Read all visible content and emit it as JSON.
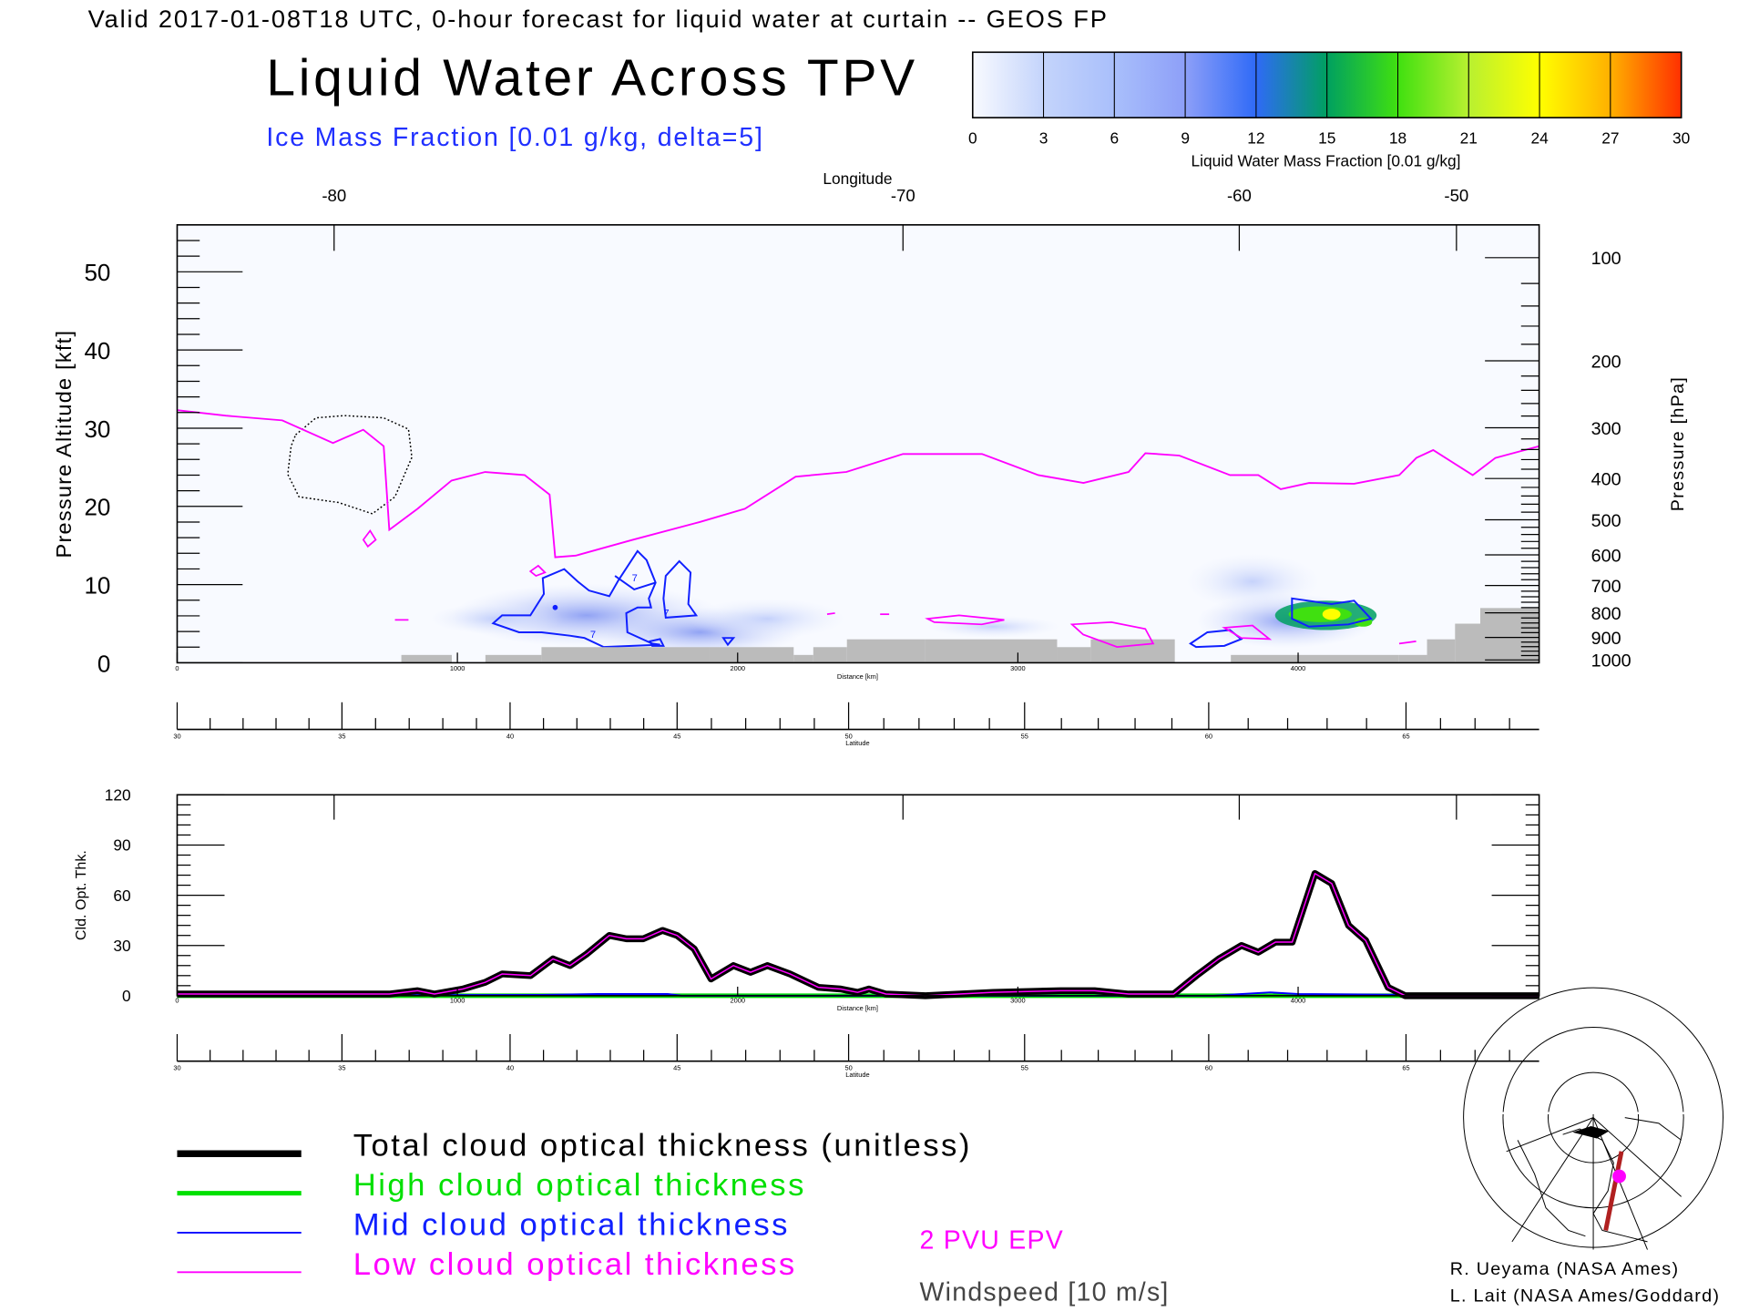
{
  "header": {
    "valid_line": "Valid 2017-01-08T18 UTC, 0-hour forecast for liquid water at curtain -- GEOS FP",
    "title": "Liquid Water Across TPV",
    "subtitle": "Ice Mass Fraction [0.01 g/kg, delta=5]"
  },
  "colorbar": {
    "ticks": [
      "0",
      "3",
      "6",
      "9",
      "12",
      "15",
      "18",
      "21",
      "24",
      "27",
      "30"
    ],
    "label": "Liquid Water Mass Fraction [0.01 g/kg]",
    "colors": [
      "#f8faff",
      "#c4d4fb",
      "#a9bffb",
      "#8d9ff8",
      "#2f6af7",
      "#00a060",
      "#40e010",
      "#b8f030",
      "#ffff00",
      "#ffb000",
      "#ff3000"
    ]
  },
  "chart_data": [
    {
      "type": "line",
      "title": "Liquid Water Across TPV",
      "xlabel": "Distance [km]",
      "ylabel": "Pressure Altitude [kft]",
      "y2label": "Pressure [hPa]",
      "top_axis_label": "Longitude",
      "bottom2_axis_label": "Latitude",
      "xlim": [
        0,
        4860
      ],
      "ylim": [
        0,
        56
      ],
      "x_ticks": [
        0,
        1000,
        2000,
        3000,
        4000
      ],
      "y_ticks": [
        0,
        10,
        20,
        30,
        40,
        50
      ],
      "pressure_ticks": [
        100,
        200,
        300,
        400,
        500,
        600,
        700,
        800,
        900,
        1000
      ],
      "longitude_ticks": [
        {
          "lon": "-80",
          "km": 560
        },
        {
          "lon": "-70",
          "km": 2590
        },
        {
          "lon": "-60",
          "km": 3790
        },
        {
          "lon": "-50",
          "km": 4565
        }
      ],
      "latitude_ticks": [
        {
          "lat": "30",
          "km": 0
        },
        {
          "lat": "35",
          "km": 588
        },
        {
          "lat": "40",
          "km": 1188
        },
        {
          "lat": "45",
          "km": 1784
        },
        {
          "lat": "50",
          "km": 2396
        },
        {
          "lat": "55",
          "km": 3024
        },
        {
          "lat": "60",
          "km": 3681
        },
        {
          "lat": "65",
          "km": 4385
        }
      ],
      "series": [
        {
          "name": "2 PVU EPV",
          "color": "#ff00ff",
          "x": [
            0,
            173,
            375,
            556,
            664,
            737,
            757,
            858,
            979,
            1099,
            1240,
            1329,
            1349,
            1422,
            1623,
            1865,
            2026,
            2207,
            2388,
            2590,
            2872,
            3073,
            3234,
            3395,
            3455,
            3576,
            3757,
            3858,
            3938,
            4039,
            4200,
            4361,
            4422,
            4482,
            4623,
            4704,
            4861
          ],
          "y": [
            32.3,
            31.6,
            31,
            28.1,
            29.8,
            27.7,
            17,
            19.7,
            23.3,
            24.4,
            24,
            21.5,
            13.5,
            13.7,
            15.7,
            18,
            19.7,
            23.8,
            24.4,
            26.7,
            26.7,
            24,
            23,
            24.4,
            26.8,
            26.5,
            24,
            24,
            22.2,
            23,
            22.9,
            24,
            26.2,
            27.2,
            24,
            26.2,
            27.7
          ]
        }
      ],
      "terrain": {
        "x": [
          0,
          800,
          980,
          1100,
          1300,
          1900,
          2200,
          2270,
          2390,
          2670,
          3140,
          3260,
          3560,
          3760,
          4360,
          4460,
          4560,
          4650,
          4861
        ],
        "y": [
          0,
          1,
          0,
          1,
          2,
          2,
          1,
          2,
          3,
          3,
          2,
          3,
          0,
          1,
          1,
          3,
          5,
          7,
          7
        ]
      }
    },
    {
      "type": "line",
      "xlabel": "Distance [km]",
      "ylabel": "Cld. Opt. Thk.",
      "bottom2_axis_label": "Latitude",
      "xlim": [
        0,
        4860
      ],
      "ylim": [
        0,
        120
      ],
      "y_ticks": [
        0,
        30,
        60,
        90,
        120
      ],
      "x_ticks": [
        0,
        1000,
        2000,
        3000,
        4000
      ],
      "series": [
        {
          "name": "Total cloud optical thickness (unitless)",
          "color": "#000000",
          "x": [
            0,
            757,
            858,
            918,
            1019,
            1099,
            1160,
            1261,
            1341,
            1402,
            1462,
            1542,
            1603,
            1663,
            1732,
            1784,
            1845,
            1905,
            1985,
            2046,
            2106,
            2187,
            2288,
            2368,
            2428,
            2469,
            2529,
            2670,
            2912,
            3153,
            3274,
            3395,
            3556,
            3637,
            3717,
            3798,
            3858,
            3919,
            3979,
            4060,
            4120,
            4180,
            4241,
            4321,
            4382,
            4861
          ],
          "y": [
            1,
            1,
            3,
            1,
            4,
            8,
            13,
            12,
            22,
            18,
            25,
            36,
            34,
            34,
            39,
            36,
            28,
            10,
            18,
            14,
            18,
            13,
            5,
            4,
            2,
            4,
            1,
            0,
            2,
            3,
            3,
            1,
            1,
            12,
            22,
            30,
            26,
            32,
            32,
            73,
            67,
            42,
            33,
            5,
            0,
            0
          ]
        },
        {
          "name": "High cloud optical thickness",
          "color": "#00e000",
          "x": [
            0,
            4861
          ],
          "y": [
            0,
            0
          ]
        },
        {
          "name": "Mid cloud optical thickness",
          "color": "#0000ff",
          "x": [
            0,
            1300,
            1500,
            1750,
            1800,
            3700,
            3800,
            3900,
            4000,
            4861
          ],
          "y": [
            0,
            0.5,
            1,
            1,
            0,
            0,
            1,
            2,
            1,
            0
          ]
        },
        {
          "name": "Low cloud optical thickness",
          "color": "#ff00ff",
          "x": [
            0,
            757,
            858,
            918,
            1019,
            1099,
            1160,
            1261,
            1341,
            1402,
            1462,
            1542,
            1603,
            1663,
            1732,
            1784,
            1845,
            1905,
            1985,
            2046,
            2106,
            2187,
            2288,
            2368,
            2428,
            2469,
            2529,
            2670,
            2912,
            3153,
            3274,
            3395,
            3556,
            3637,
            3717,
            3798,
            3858,
            3919,
            3979,
            4060,
            4120,
            4180,
            4241,
            4321,
            4382,
            4861
          ],
          "y": [
            1,
            1,
            3,
            1,
            4,
            8,
            13,
            12,
            22,
            18,
            25,
            36,
            34,
            34,
            39,
            36,
            28,
            10,
            18,
            14,
            18,
            13,
            5,
            4,
            2,
            4,
            1,
            0,
            2,
            3,
            3,
            1,
            1,
            12,
            22,
            30,
            26,
            32,
            32,
            73,
            67,
            42,
            33,
            5,
            0,
            0
          ]
        }
      ]
    }
  ],
  "legend": {
    "total": "Total cloud optical thickness (unitless)",
    "high": "High cloud optical thickness",
    "mid": "Mid cloud optical thickness",
    "low": "Low cloud optical thickness",
    "epv": "2 PVU EPV",
    "wind": "Windspeed [10 m/s]"
  },
  "credits": {
    "line1": "R. Ueyama (NASA Ames)",
    "line2": "L. Lait (NASA Ames/Goddard)"
  },
  "contour_label": "7"
}
